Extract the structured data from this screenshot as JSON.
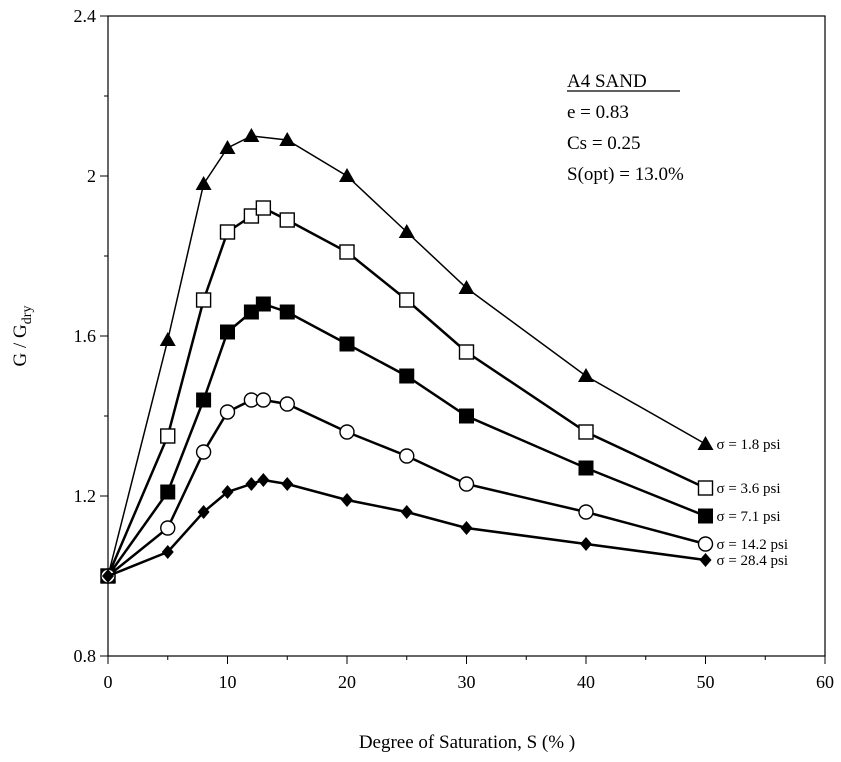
{
  "chart_data": {
    "type": "line",
    "xlabel": "Degree of Saturation, S (% )",
    "ylabel_main": "G / G",
    "ylabel_sub": "dry",
    "xlim": [
      0,
      60
    ],
    "ylim": [
      0.8,
      2.4
    ],
    "xticks": [
      0,
      10,
      20,
      30,
      40,
      50,
      60
    ],
    "yticks": [
      0.8,
      1.2,
      1.6,
      2.0,
      2.4
    ],
    "xtick_labels": [
      "0",
      "10",
      "20",
      "30",
      "40",
      "50",
      "60"
    ],
    "ytick_labels": [
      "0.8",
      "1.2",
      "1.6",
      "2",
      "2.4"
    ],
    "grid": false,
    "legend": "inline labels at right end of each series",
    "annotation": {
      "title": "A4 SAND",
      "lines": [
        "e = 0.83",
        "Cs = 0.25",
        "S(opt) = 13.0%"
      ]
    },
    "series": [
      {
        "name": "σ = 1.8 psi",
        "marker": "triangle-filled",
        "x": [
          0,
          5,
          8,
          10,
          12,
          15,
          20,
          25,
          30,
          40,
          50
        ],
        "y": [
          1.0,
          1.59,
          1.98,
          2.07,
          2.1,
          2.09,
          2.0,
          1.86,
          1.72,
          1.5,
          1.33
        ]
      },
      {
        "name": "σ = 3.6 psi",
        "marker": "square-open",
        "x": [
          0,
          5,
          8,
          10,
          12,
          13,
          15,
          20,
          25,
          30,
          40,
          50
        ],
        "y": [
          1.0,
          1.35,
          1.69,
          1.86,
          1.9,
          1.92,
          1.89,
          1.81,
          1.69,
          1.56,
          1.36,
          1.22
        ]
      },
      {
        "name": "σ = 7.1 psi",
        "marker": "square-filled",
        "x": [
          0,
          5,
          8,
          10,
          12,
          13,
          15,
          20,
          25,
          30,
          40,
          50
        ],
        "y": [
          1.0,
          1.21,
          1.44,
          1.61,
          1.66,
          1.68,
          1.66,
          1.58,
          1.5,
          1.4,
          1.27,
          1.15
        ]
      },
      {
        "name": "σ = 14.2 psi",
        "marker": "circle-open",
        "x": [
          0,
          5,
          8,
          10,
          12,
          13,
          15,
          20,
          25,
          30,
          40,
          50
        ],
        "y": [
          1.0,
          1.12,
          1.31,
          1.41,
          1.44,
          1.44,
          1.43,
          1.36,
          1.3,
          1.23,
          1.16,
          1.08
        ]
      },
      {
        "name": "σ = 28.4 psi",
        "marker": "diamond-filled",
        "x": [
          0,
          5,
          8,
          10,
          12,
          13,
          15,
          20,
          25,
          30,
          40,
          50
        ],
        "y": [
          1.0,
          1.06,
          1.16,
          1.21,
          1.23,
          1.24,
          1.23,
          1.19,
          1.16,
          1.12,
          1.08,
          1.04
        ]
      }
    ]
  }
}
